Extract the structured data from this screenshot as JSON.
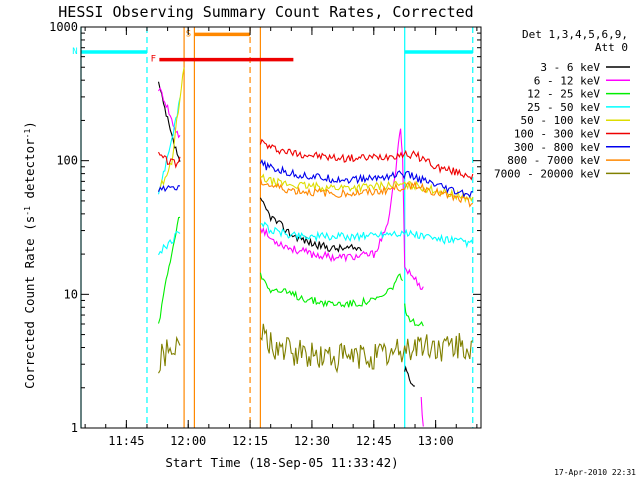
{
  "chart_data": {
    "type": "line",
    "title": "HESSI Observing Summary Count Rates, Corrected",
    "xlabel": "Start Time (18-Sep-05 11:33:42)",
    "ylabel_main": "Corrected Count Rate (s",
    "ylabel_sup1": "-1",
    "ylabel_mid": " detector",
    "ylabel_sup2": "-1",
    "ylabel_end": ")",
    "yscale": "log",
    "ylim": [
      1,
      1000
    ],
    "yticks": [
      {
        "value": 1,
        "label": "1"
      },
      {
        "value": 10,
        "label": "10"
      },
      {
        "value": 100,
        "label": "100"
      },
      {
        "value": 1000,
        "label": "1000"
      }
    ],
    "xlim_minutes": [
      694.0,
      791.0
    ],
    "xticks": [
      {
        "minute": 705,
        "label": "11:45"
      },
      {
        "minute": 720,
        "label": "12:00"
      },
      {
        "minute": 735,
        "label": "12:15"
      },
      {
        "minute": 750,
        "label": "12:30"
      },
      {
        "minute": 765,
        "label": "12:45"
      },
      {
        "minute": 780,
        "label": "13:00"
      }
    ],
    "legend": {
      "placement": "right",
      "header": [
        "Det 1,3,4,5,6,9,",
        "Att 0"
      ],
      "entries": [
        {
          "name": "3 - 6 keV",
          "color": "#000000"
        },
        {
          "name": "6 - 12 keV",
          "color": "#ff00ff"
        },
        {
          "name": "12 - 25 keV",
          "color": "#00ee00"
        },
        {
          "name": "25 - 50 keV",
          "color": "#00ffff"
        },
        {
          "name": "50 - 100 keV",
          "color": "#dddd00"
        },
        {
          "name": "100 - 300 keV",
          "color": "#ee0000"
        },
        {
          "name": "300 - 800 keV",
          "color": "#0000ee"
        },
        {
          "name": "800 - 7000 keV",
          "color": "#ff8800"
        },
        {
          "name": "7000 - 20000 keV",
          "color": "#808000"
        }
      ]
    },
    "flag_bars": [
      {
        "label": "N",
        "color": "#00ffff",
        "segments": [
          [
            694.0,
            710.0
          ],
          [
            772.5,
            789.0
          ]
        ],
        "value": 650
      },
      {
        "label": "S",
        "color": "#ff8800",
        "segments": [
          [
            721.5,
            735.0
          ]
        ],
        "value": 880
      },
      {
        "label": "F",
        "color": "#ee0000",
        "segments": [
          [
            713.0,
            745.5
          ]
        ],
        "value": 570
      }
    ],
    "night_markers": [
      {
        "minute": 694.0,
        "style": "solid",
        "color": "#00ffff"
      },
      {
        "minute": 710.0,
        "style": "dashed",
        "color": "#00ffff"
      },
      {
        "minute": 772.5,
        "style": "solid",
        "color": "#00ffff"
      },
      {
        "minute": 789.0,
        "style": "dashed",
        "color": "#00ffff"
      }
    ],
    "saa_markers": [
      {
        "minute": 719.0,
        "style": "solid",
        "color": "#ff8800"
      },
      {
        "minute": 721.5,
        "style": "solid",
        "color": "#ff8800"
      },
      {
        "minute": 735.0,
        "style": "dashed",
        "color": "#ff8800"
      },
      {
        "minute": 737.5,
        "style": "solid",
        "color": "#ff8800"
      }
    ],
    "series": [
      {
        "name": "3 - 6 keV",
        "color": "#000000",
        "points": [
          [
            712.8,
            380
          ],
          [
            714,
            260
          ],
          [
            715,
            200
          ],
          [
            716,
            150
          ],
          [
            717,
            120
          ],
          [
            718,
            100
          ]
        ],
        "points2": [
          [
            737.5,
            50
          ],
          [
            740,
            38
          ],
          [
            745,
            28
          ],
          [
            750,
            24
          ],
          [
            755,
            22
          ],
          [
            760,
            22
          ],
          [
            762,
            22
          ]
        ],
        "points3": [
          [
            772.5,
            2.8
          ],
          [
            773,
            2.5
          ],
          [
            774,
            2.3
          ],
          [
            775,
            2.0
          ]
        ]
      },
      {
        "name": "6 - 12 keV",
        "color": "#ff00ff",
        "points": [
          [
            712.8,
            350
          ],
          [
            714,
            300
          ],
          [
            715,
            250
          ],
          [
            716,
            200
          ],
          [
            717,
            170
          ],
          [
            718,
            150
          ]
        ],
        "points2": [
          [
            737.5,
            32
          ],
          [
            740,
            26
          ],
          [
            745,
            22
          ],
          [
            750,
            20
          ],
          [
            755,
            19
          ],
          [
            760,
            19
          ],
          [
            765,
            20
          ],
          [
            768,
            30
          ],
          [
            770,
            70
          ],
          [
            771,
            130
          ],
          [
            771.5,
            180
          ],
          [
            772,
            110
          ],
          [
            772.5,
            16
          ],
          [
            774,
            14
          ],
          [
            776,
            12
          ],
          [
            777,
            11
          ]
        ],
        "points3": [
          [
            776.5,
            1.7
          ],
          [
            777,
            1.0
          ]
        ]
      },
      {
        "name": "12 - 25 keV",
        "color": "#00ee00",
        "points": [
          [
            712.8,
            6
          ],
          [
            714,
            10
          ],
          [
            715,
            14
          ],
          [
            716,
            20
          ],
          [
            717,
            28
          ],
          [
            718,
            40
          ]
        ],
        "points2": [
          [
            737.5,
            14
          ],
          [
            740,
            11
          ],
          [
            745,
            10
          ],
          [
            750,
            9
          ],
          [
            755,
            8.5
          ],
          [
            760,
            8.5
          ],
          [
            765,
            9
          ],
          [
            768,
            10
          ],
          [
            770,
            12
          ],
          [
            771,
            14
          ],
          [
            772,
            12
          ]
        ],
        "points3": [
          [
            772.5,
            8
          ],
          [
            773,
            7
          ],
          [
            775,
            6
          ],
          [
            777,
            6
          ]
        ]
      },
      {
        "name": "25 - 50 keV",
        "color": "#00ffff",
        "points": [
          [
            712.8,
            60
          ],
          [
            714,
            80
          ],
          [
            715,
            110
          ],
          [
            716,
            150
          ],
          [
            717,
            200
          ],
          [
            718,
            300
          ]
        ],
        "points2": [
          [
            737.5,
            35
          ],
          [
            740,
            30
          ],
          [
            745,
            28
          ],
          [
            750,
            27
          ],
          [
            755,
            27
          ],
          [
            760,
            27
          ],
          [
            765,
            28
          ],
          [
            770,
            29
          ],
          [
            775,
            28
          ],
          [
            780,
            26
          ],
          [
            785,
            25
          ],
          [
            789,
            24
          ]
        ],
        "points3": [
          [
            712.8,
            20
          ],
          [
            714,
            22
          ],
          [
            716,
            25
          ],
          [
            718,
            30
          ]
        ]
      },
      {
        "name": "50 - 100 keV",
        "color": "#dddd00",
        "points": [
          [
            712.8,
            60
          ],
          [
            714,
            70
          ],
          [
            716,
            100
          ],
          [
            718,
            300
          ],
          [
            719,
            500
          ]
        ],
        "points2": [
          [
            737.5,
            75
          ],
          [
            740,
            70
          ],
          [
            745,
            66
          ],
          [
            750,
            64
          ],
          [
            755,
            63
          ],
          [
            760,
            63
          ],
          [
            765,
            64
          ],
          [
            770,
            66
          ],
          [
            775,
            65
          ],
          [
            780,
            60
          ],
          [
            785,
            55
          ],
          [
            789,
            52
          ]
        ],
        "points3": []
      },
      {
        "name": "100 - 300 keV",
        "color": "#ee0000",
        "points": [
          [
            712.8,
            110
          ],
          [
            715,
            100
          ],
          [
            717,
            95
          ],
          [
            718,
            100
          ]
        ],
        "points2": [
          [
            737.5,
            140
          ],
          [
            740,
            125
          ],
          [
            745,
            115
          ],
          [
            750,
            110
          ],
          [
            755,
            105
          ],
          [
            760,
            104
          ],
          [
            765,
            106
          ],
          [
            768,
            108
          ],
          [
            770,
            110
          ],
          [
            772,
            112
          ],
          [
            775,
            110
          ],
          [
            778,
            100
          ],
          [
            780,
            90
          ],
          [
            785,
            82
          ],
          [
            789,
            77
          ]
        ],
        "points3": []
      },
      {
        "name": "300 - 800 keV",
        "color": "#0000ee",
        "points": [
          [
            712.8,
            60
          ],
          [
            714,
            61
          ],
          [
            716,
            62
          ],
          [
            718,
            63
          ]
        ],
        "points2": [
          [
            737.5,
            95
          ],
          [
            740,
            88
          ],
          [
            745,
            80
          ],
          [
            750,
            76
          ],
          [
            755,
            73
          ],
          [
            760,
            72
          ],
          [
            765,
            74
          ],
          [
            770,
            78
          ],
          [
            772,
            80
          ],
          [
            775,
            75
          ],
          [
            780,
            65
          ],
          [
            785,
            58
          ],
          [
            789,
            55
          ]
        ],
        "points3": []
      },
      {
        "name": "800 - 7000 keV",
        "color": "#ff8800",
        "points": [],
        "points2": [
          [
            737.5,
            70
          ],
          [
            740,
            65
          ],
          [
            745,
            60
          ],
          [
            750,
            58
          ],
          [
            755,
            57
          ],
          [
            760,
            57
          ],
          [
            765,
            58
          ],
          [
            770,
            62
          ],
          [
            775,
            66
          ],
          [
            780,
            58
          ],
          [
            785,
            52
          ],
          [
            789,
            48
          ]
        ],
        "points3": []
      },
      {
        "name": "7000 - 20000 keV",
        "color": "#808000",
        "points": [
          [
            712.8,
            3
          ],
          [
            714,
            3.5
          ],
          [
            716,
            3.8
          ],
          [
            718,
            5
          ]
        ],
        "points2": [
          [
            737.5,
            5
          ],
          [
            740,
            4.2
          ],
          [
            745,
            3.6
          ],
          [
            750,
            3.5
          ],
          [
            755,
            3.4
          ],
          [
            760,
            3.4
          ],
          [
            765,
            3.5
          ],
          [
            770,
            3.6
          ],
          [
            775,
            4.2
          ],
          [
            780,
            4.0
          ],
          [
            785,
            4.0
          ],
          [
            789,
            4.0
          ]
        ],
        "points3": []
      }
    ],
    "footer_date": "17-Apr-2010 22:31"
  }
}
